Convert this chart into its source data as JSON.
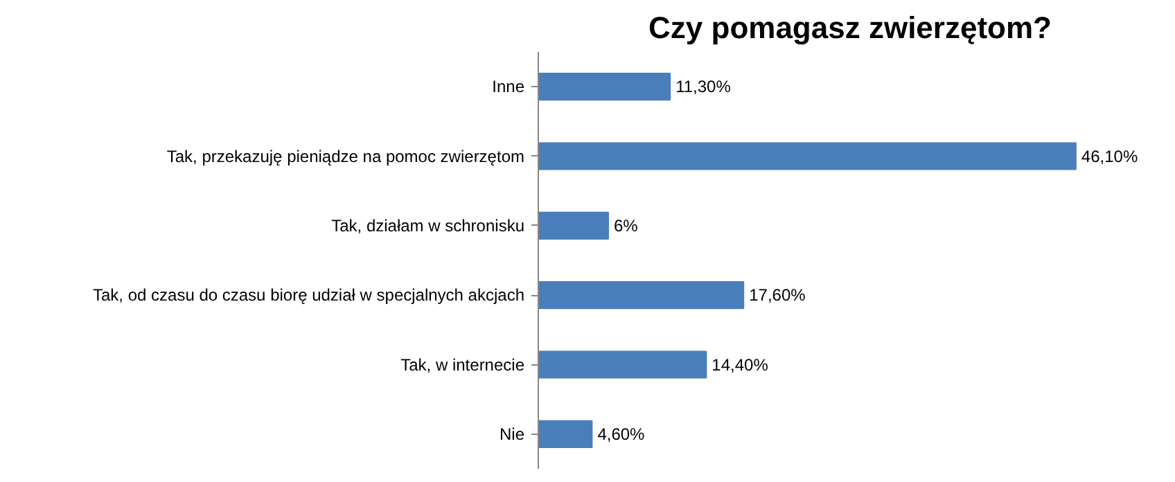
{
  "chart_data": {
    "type": "bar",
    "orientation": "horizontal",
    "title": "Czy pomagasz zwierzętom?",
    "categories": [
      "Inne",
      "Tak, przekazuję pieniądze na pomoc zwierzętom",
      "Tak, działam w schronisku",
      "Tak, od czasu do czasu biorę udział w specjalnych akcjach",
      "Tak, w internecie",
      "Nie"
    ],
    "values": [
      11.3,
      46.1,
      6,
      17.6,
      14.4,
      4.6
    ],
    "value_labels": [
      "11,30%",
      "46,10%",
      "6%",
      "17,60%",
      "14,40%",
      "4,60%"
    ],
    "color": "#4a7ebb",
    "grid": false
  }
}
